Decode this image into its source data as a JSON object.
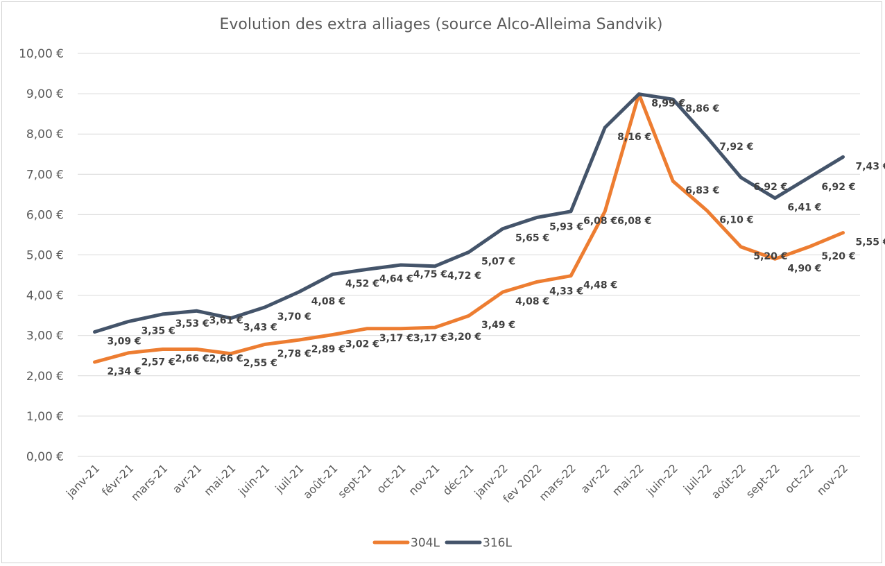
{
  "chart_data": {
    "type": "line",
    "title": "Evolution des extra alliages (source Alco-Alleima Sandvik)",
    "xlabel": "",
    "ylabel": "",
    "categories": [
      "janv-21",
      "févr-21",
      "mars-21",
      "avr-21",
      "mai-21",
      "juin-21",
      "juil-21",
      "août-21",
      "sept-21",
      "oct-21",
      "nov-21",
      "déc-21",
      "janv-22",
      "fev 2022",
      "mars-22",
      "avr-22",
      "mai-22",
      "juin-22",
      "juil-22",
      "août-22",
      "sept-22",
      "oct-22",
      "nov-22"
    ],
    "ylim": [
      0,
      10
    ],
    "yticks": [
      0,
      1,
      2,
      3,
      4,
      5,
      6,
      7,
      8,
      9,
      10
    ],
    "ytick_labels": [
      "0,00 €",
      "1,00 €",
      "2,00 €",
      "3,00 €",
      "4,00 €",
      "5,00 €",
      "6,00 €",
      "7,00 €",
      "8,00 €",
      "9,00 €",
      "10,00 €"
    ],
    "grid": true,
    "legend_position": "bottom",
    "series": [
      {
        "name": "304L",
        "color": "#ED7D31",
        "values": [
          2.34,
          2.57,
          2.66,
          2.66,
          2.55,
          2.78,
          2.89,
          3.02,
          3.17,
          3.17,
          3.2,
          3.49,
          4.08,
          4.33,
          4.48,
          6.08,
          8.99,
          6.83,
          6.1,
          5.2,
          4.9,
          5.2,
          5.55
        ],
        "labels": [
          "2,34 €",
          "2,57 €",
          "2,66 €",
          "2,66 €",
          "2,55 €",
          "2,78 €",
          "2,89 €",
          "3,02 €",
          "3,17 €",
          "3,17 €",
          "3,20 €",
          "3,49 €",
          "4,08 €",
          "4,33 €",
          "4,48 €",
          "6,08 €",
          "8,99 €",
          "6,83 €",
          "6,10 €",
          "5,20 €",
          "4,90 €",
          "5,20 €",
          "5,55 €"
        ]
      },
      {
        "name": "316L",
        "color": "#44546A",
        "values": [
          3.09,
          3.35,
          3.53,
          3.61,
          3.43,
          3.7,
          4.08,
          4.52,
          4.64,
          4.75,
          4.72,
          5.07,
          5.65,
          5.93,
          6.08,
          8.16,
          8.99,
          8.86,
          7.92,
          6.92,
          6.41,
          6.92,
          7.43
        ],
        "labels": [
          "3,09 €",
          "3,35 €",
          "3,53 €",
          "3,61 €",
          "3,43 €",
          "3,70 €",
          "4,08 €",
          "4,52 €",
          "4,64 €",
          "4,75 €",
          "4,72 €",
          "5,07 €",
          "5,65 €",
          "5,93 €",
          "6,08 €",
          "8,16 €",
          "8,99 €",
          "8,86 €",
          "7,92 €",
          "6,92 €",
          "6,41 €",
          "6,92 €",
          "7,43 €"
        ]
      }
    ]
  }
}
